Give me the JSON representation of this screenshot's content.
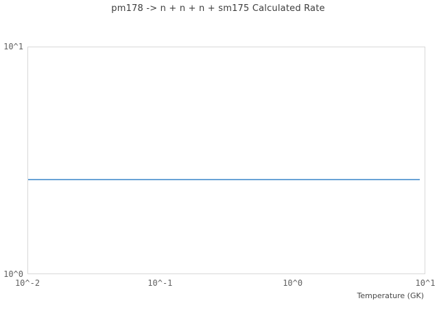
{
  "title": "pm178 -> n + n + n + sm175 Calculated Rate",
  "axes": {
    "x": {
      "label": "Temperature (GK)",
      "scale": "log",
      "ticks": [
        "10^-2",
        "10^-1",
        "10^0",
        "10^1"
      ],
      "range": [
        0.01,
        10
      ]
    },
    "y": {
      "label": "",
      "scale": "log",
      "ticks": [
        "10^0",
        "10^1"
      ],
      "range": [
        1,
        10
      ]
    }
  },
  "colors": {
    "line": "#68a3d6",
    "plot_border": "#d8d8d8",
    "title_text": "#3d3d3d",
    "tick_text": "#5f5f5f",
    "axis_label_text": "#474747",
    "background": "#ffffff"
  },
  "chart_data": {
    "type": "line",
    "title": "pm178 -> n + n + n + sm175 Calculated Rate",
    "xlabel": "Temperature (GK)",
    "ylabel": "",
    "xscale": "log",
    "yscale": "log",
    "xlim": [
      0.01,
      10
    ],
    "ylim": [
      1,
      10
    ],
    "grid": false,
    "legend": null,
    "series": [
      {
        "name": "Calculated Rate",
        "x": [
          0.01,
          9.2
        ],
        "y": [
          2.6,
          2.6
        ],
        "shape": "constant-horizontal-line"
      }
    ]
  }
}
